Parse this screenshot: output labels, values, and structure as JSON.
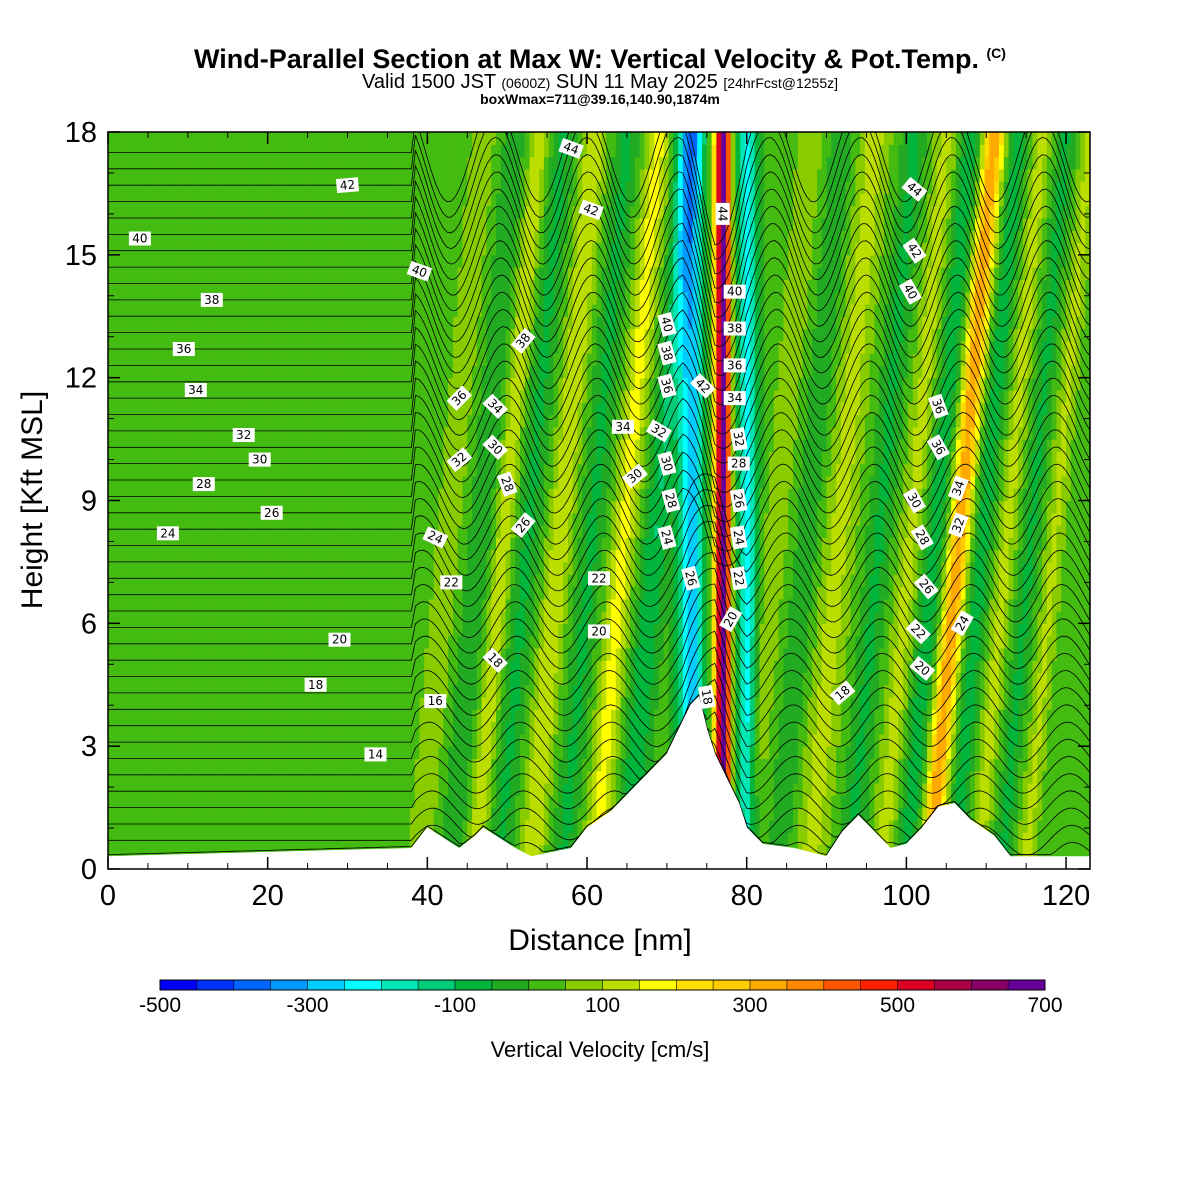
{
  "header": {
    "title": "Wind-Parallel Section at Max W: Vertical Velocity & Pot.Temp.",
    "title_mark": "(C)",
    "valid_prefix": "Valid 1500 JST",
    "valid_utc": "(0600Z)",
    "valid_date": "SUN 11 May 2025",
    "forecast_info": "[24hrFcst@1255z]",
    "box_info": "boxWmax=711@39.16,140.90,1874m"
  },
  "colorbar": {
    "label": "Vertical Velocity [cm/s]",
    "tick_labels": [
      "-500",
      "-300",
      "-100",
      "100",
      "300",
      "500",
      "700"
    ],
    "colors": [
      "#0000ff",
      "#0033ff",
      "#0066ff",
      "#0099ff",
      "#00ccff",
      "#00ffff",
      "#00e6b4",
      "#00cc78",
      "#00b43c",
      "#22aa22",
      "#44bb11",
      "#88cc00",
      "#bbdd00",
      "#ffff00",
      "#ffdd00",
      "#ffcc00",
      "#ffaa00",
      "#ff8800",
      "#ff5500",
      "#ff2200",
      "#dd0022",
      "#aa0044",
      "#880066",
      "#660099"
    ]
  },
  "chart_data": {
    "type": "heatmap",
    "title": "Wind-Parallel Section at Max W: Vertical Velocity & Pot.Temp.",
    "xlabel": "Distance [nm]",
    "ylabel": "Height [Kft MSL]",
    "xlim": [
      0,
      123
    ],
    "ylim": [
      0,
      18
    ],
    "x_ticks": [
      0,
      20,
      40,
      60,
      80,
      100,
      120
    ],
    "y_ticks": [
      0,
      3,
      6,
      9,
      12,
      15,
      18
    ],
    "x_tick_labels": [
      "0",
      "20",
      "40",
      "60",
      "80",
      "100",
      "120"
    ],
    "y_tick_labels": [
      "0",
      "3",
      "6",
      "9",
      "12",
      "15",
      "18"
    ],
    "colorbar_range": [
      -500,
      700
    ],
    "max_w_cm_s": 711,
    "velocity_bands": [
      {
        "x": 43,
        "w": 80,
        "width": 1.5
      },
      {
        "x": 47,
        "w": -60,
        "width": 1.5
      },
      {
        "x": 50,
        "w": 120,
        "width": 1.2
      },
      {
        "x": 53,
        "w": -80,
        "width": 1.5
      },
      {
        "x": 57,
        "w": 130,
        "width": 1.5
      },
      {
        "x": 61,
        "w": -80,
        "width": 1.5
      },
      {
        "x": 65,
        "w": 150,
        "width": 1.5
      },
      {
        "x": 69,
        "w": -120,
        "width": 1.5
      },
      {
        "x": 73,
        "w": -300,
        "width": 1.6
      },
      {
        "x": 77,
        "w": 650,
        "width": 1.0
      },
      {
        "x": 80,
        "w": -250,
        "width": 1.3
      },
      {
        "x": 84,
        "w": 80,
        "width": 1.5
      },
      {
        "x": 88,
        "w": -60,
        "width": 1.5
      },
      {
        "x": 92,
        "w": 100,
        "width": 2.0
      },
      {
        "x": 97,
        "w": -80,
        "width": 1.5
      },
      {
        "x": 101,
        "w": 100,
        "width": 1.5
      },
      {
        "x": 104,
        "w": -100,
        "width": 1.5
      },
      {
        "x": 107,
        "w": 330,
        "width": 1.3
      },
      {
        "x": 110,
        "w": -100,
        "width": 1.2
      },
      {
        "x": 113,
        "w": 100,
        "width": 1.2
      },
      {
        "x": 116,
        "w": -80,
        "width": 1.2
      },
      {
        "x": 119,
        "w": 90,
        "width": 1.2
      }
    ],
    "terrain": {
      "x": [
        0,
        38,
        40,
        44,
        46,
        47,
        51,
        53,
        58,
        60,
        63,
        66,
        68,
        70,
        71,
        72,
        73,
        74,
        75,
        76,
        77,
        78,
        79,
        80,
        82,
        86,
        90,
        92,
        94,
        96,
        98,
        100,
        102,
        104,
        106,
        108,
        111,
        113,
        123
      ],
      "height_kft": [
        0.3,
        0.5,
        1.0,
        0.5,
        0.8,
        1.0,
        0.5,
        0.3,
        0.5,
        1.0,
        1.4,
        2.0,
        2.4,
        2.8,
        3.2,
        3.6,
        4.0,
        4.2,
        3.4,
        2.8,
        2.4,
        2.0,
        1.6,
        1.0,
        0.6,
        0.5,
        0.3,
        0.9,
        1.3,
        0.9,
        0.5,
        0.6,
        1.0,
        1.5,
        1.6,
        1.2,
        0.8,
        0.3,
        0.3
      ]
    },
    "theta_contour_labels": [
      {
        "text": "44",
        "x": 58,
        "y": 17.6,
        "r": 20
      },
      {
        "text": "42",
        "x": 30,
        "y": 16.7,
        "r": -5
      },
      {
        "text": "42",
        "x": 60.5,
        "y": 16.1,
        "r": 20
      },
      {
        "text": "44",
        "x": 77,
        "y": 16.0,
        "r": 90
      },
      {
        "text": "44",
        "x": 101,
        "y": 16.6,
        "r": 40
      },
      {
        "text": "40",
        "x": 4,
        "y": 15.4,
        "r": 0
      },
      {
        "text": "40",
        "x": 39,
        "y": 14.6,
        "r": 20
      },
      {
        "text": "42",
        "x": 101,
        "y": 15.1,
        "r": 55
      },
      {
        "text": "38",
        "x": 13,
        "y": 13.9,
        "r": 0
      },
      {
        "text": "40",
        "x": 78.5,
        "y": 14.1,
        "r": 0
      },
      {
        "text": "40",
        "x": 100.5,
        "y": 14.1,
        "r": 60
      },
      {
        "text": "38",
        "x": 52,
        "y": 12.9,
        "r": -50
      },
      {
        "text": "40",
        "x": 70,
        "y": 13.3,
        "r": 75
      },
      {
        "text": "38",
        "x": 78.5,
        "y": 13.2,
        "r": 0
      },
      {
        "text": "36",
        "x": 9.5,
        "y": 12.7,
        "r": 0
      },
      {
        "text": "38",
        "x": 70,
        "y": 12.6,
        "r": 75
      },
      {
        "text": "36",
        "x": 78.5,
        "y": 12.3,
        "r": 0
      },
      {
        "text": "34",
        "x": 11,
        "y": 11.7,
        "r": 0
      },
      {
        "text": "42",
        "x": 74.5,
        "y": 11.8,
        "r": 45
      },
      {
        "text": "36",
        "x": 70,
        "y": 11.8,
        "r": 75
      },
      {
        "text": "36",
        "x": 44,
        "y": 11.5,
        "r": -45
      },
      {
        "text": "34",
        "x": 48.5,
        "y": 11.3,
        "r": 45
      },
      {
        "text": "34",
        "x": 78.5,
        "y": 11.5,
        "r": 0
      },
      {
        "text": "36",
        "x": 104,
        "y": 11.3,
        "r": 70
      },
      {
        "text": "32",
        "x": 17,
        "y": 10.6,
        "r": 0
      },
      {
        "text": "34",
        "x": 64.5,
        "y": 10.8,
        "r": 0
      },
      {
        "text": "32",
        "x": 69,
        "y": 10.7,
        "r": 30
      },
      {
        "text": "32",
        "x": 79,
        "y": 10.5,
        "r": 80
      },
      {
        "text": "30",
        "x": 48.5,
        "y": 10.3,
        "r": 45
      },
      {
        "text": "36",
        "x": 104,
        "y": 10.3,
        "r": 60
      },
      {
        "text": "30",
        "x": 19,
        "y": 10.0,
        "r": 0
      },
      {
        "text": "32",
        "x": 44,
        "y": 10.0,
        "r": -40
      },
      {
        "text": "30",
        "x": 70,
        "y": 9.9,
        "r": 75
      },
      {
        "text": "28",
        "x": 79,
        "y": 9.9,
        "r": 0
      },
      {
        "text": "30",
        "x": 66,
        "y": 9.6,
        "r": -40
      },
      {
        "text": "28",
        "x": 12,
        "y": 9.4,
        "r": 0
      },
      {
        "text": "28",
        "x": 50,
        "y": 9.4,
        "r": 70
      },
      {
        "text": "34",
        "x": 106.5,
        "y": 9.3,
        "r": -70
      },
      {
        "text": "26",
        "x": 79,
        "y": 9.0,
        "r": 80
      },
      {
        "text": "28",
        "x": 70.5,
        "y": 9.0,
        "r": 75
      },
      {
        "text": "30",
        "x": 101,
        "y": 9.0,
        "r": 60
      },
      {
        "text": "26",
        "x": 20.5,
        "y": 8.7,
        "r": 0
      },
      {
        "text": "26",
        "x": 52,
        "y": 8.4,
        "r": -50
      },
      {
        "text": "32",
        "x": 106.5,
        "y": 8.4,
        "r": -70
      },
      {
        "text": "24",
        "x": 7.5,
        "y": 8.2,
        "r": 0
      },
      {
        "text": "24",
        "x": 41,
        "y": 8.1,
        "r": 25
      },
      {
        "text": "24",
        "x": 70,
        "y": 8.1,
        "r": 75
      },
      {
        "text": "24",
        "x": 79,
        "y": 8.1,
        "r": 80
      },
      {
        "text": "28",
        "x": 102,
        "y": 8.1,
        "r": 60
      },
      {
        "text": "22",
        "x": 43,
        "y": 7.0,
        "r": 0
      },
      {
        "text": "22",
        "x": 61.5,
        "y": 7.1,
        "r": 0
      },
      {
        "text": "26",
        "x": 73,
        "y": 7.1,
        "r": 75
      },
      {
        "text": "22",
        "x": 79,
        "y": 7.1,
        "r": 80
      },
      {
        "text": "26",
        "x": 102.5,
        "y": 6.9,
        "r": 50
      },
      {
        "text": "20",
        "x": 78,
        "y": 6.1,
        "r": -60
      },
      {
        "text": "24",
        "x": 107,
        "y": 6.0,
        "r": -60
      },
      {
        "text": "20",
        "x": 29,
        "y": 5.6,
        "r": 0
      },
      {
        "text": "20",
        "x": 61.5,
        "y": 5.8,
        "r": 0
      },
      {
        "text": "22",
        "x": 101.5,
        "y": 5.8,
        "r": 45
      },
      {
        "text": "18",
        "x": 48.5,
        "y": 5.1,
        "r": 45
      },
      {
        "text": "20",
        "x": 102,
        "y": 4.9,
        "r": 40
      },
      {
        "text": "18",
        "x": 26,
        "y": 4.5,
        "r": 0
      },
      {
        "text": "18",
        "x": 92,
        "y": 4.3,
        "r": -40
      },
      {
        "text": "18",
        "x": 75,
        "y": 4.2,
        "r": 80
      },
      {
        "text": "16",
        "x": 41,
        "y": 4.1,
        "r": 0
      },
      {
        "text": "14",
        "x": 33.5,
        "y": 2.8,
        "r": 0
      }
    ]
  }
}
